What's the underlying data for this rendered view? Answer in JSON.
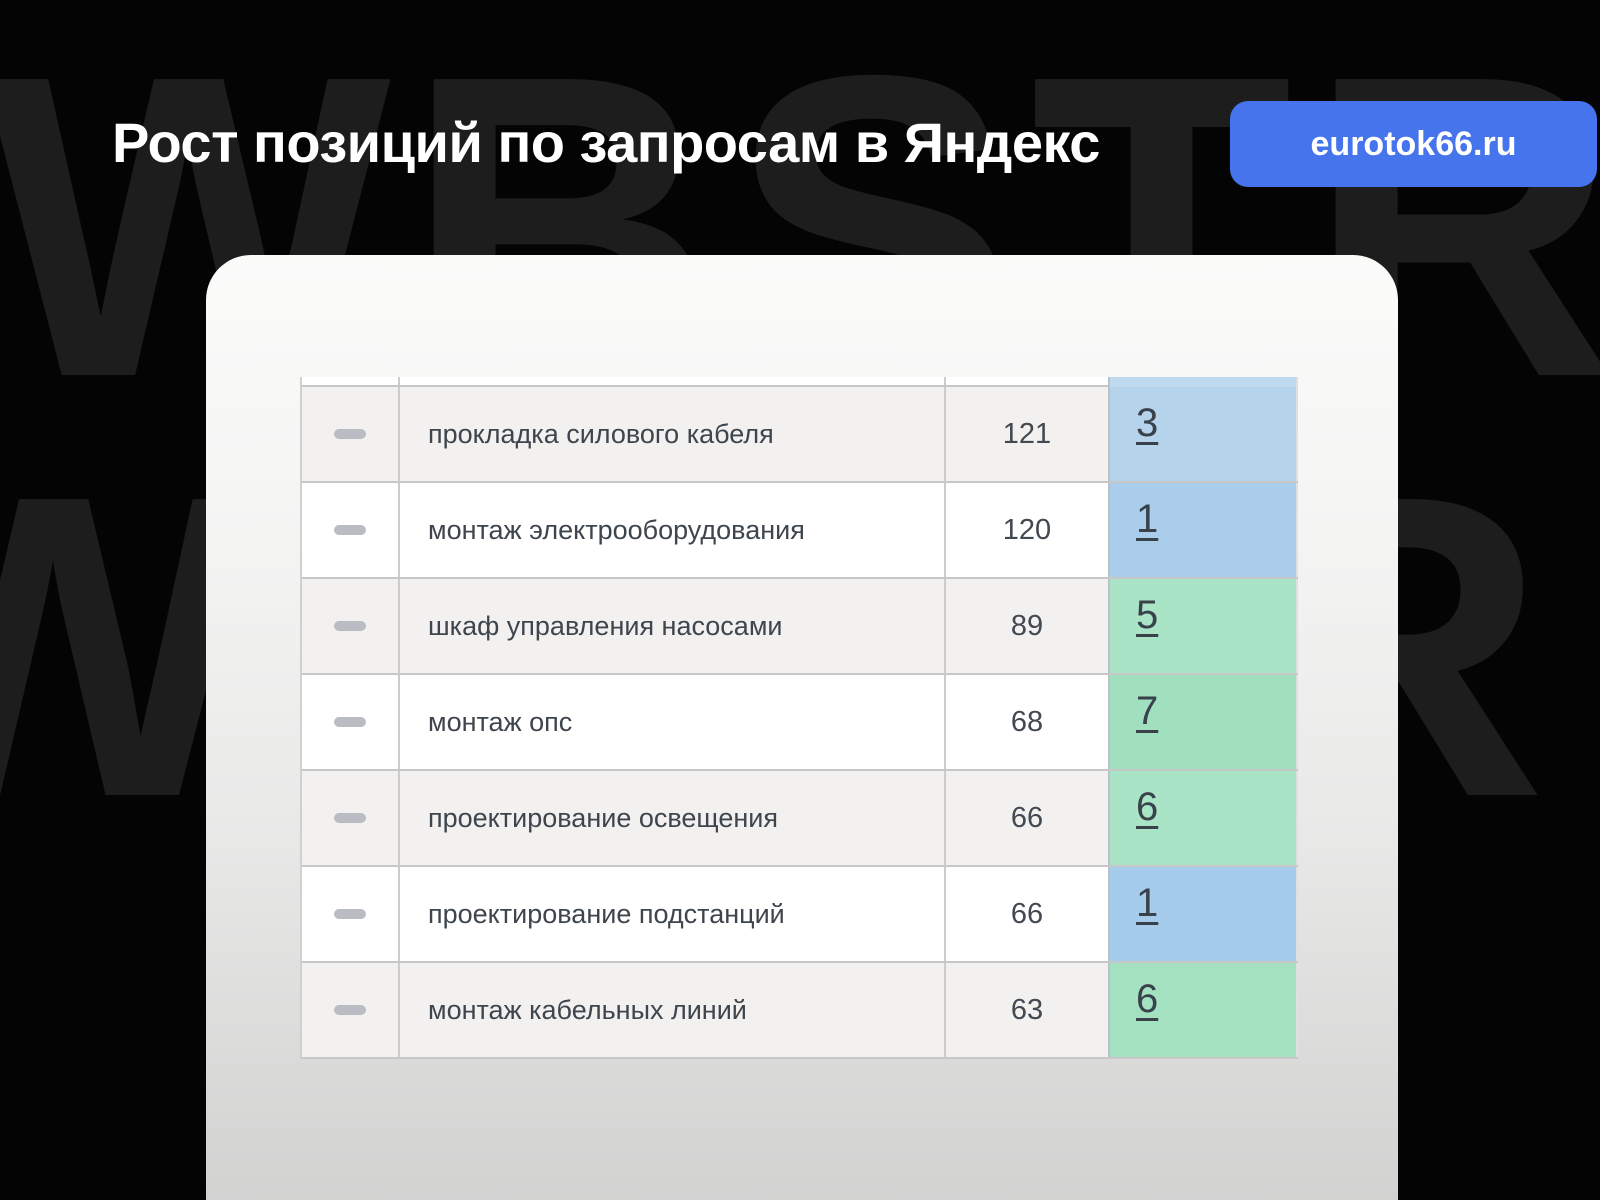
{
  "header": {
    "title": "Рост позиций по запросам в Яндекс",
    "site_badge": "eurotok66.ru"
  },
  "watermark": {
    "line1": "WBSTR",
    "line2": "WBSTR"
  },
  "colors": {
    "badge_bg": "#4674ec",
    "watermark_text": "#1d1d1d",
    "cut_row_highlight": "#bfd9ee",
    "blue_highlight": "#a9cdea",
    "green_highlight": "#a9e4c6"
  },
  "table": {
    "rows": [
      {
        "query": "прокладка силового кабеля",
        "count": "121",
        "position": "3",
        "highlight": "blue",
        "cell_color": "#b5d4ec"
      },
      {
        "query": "монтаж электрооборудования",
        "count": "120",
        "position": "1",
        "highlight": "blue",
        "cell_color": "#a9cdea"
      },
      {
        "query": "шкаф управления насосами",
        "count": "89",
        "position": "5",
        "highlight": "green",
        "cell_color": "#a9e4c6"
      },
      {
        "query": "монтаж опс",
        "count": "68",
        "position": "7",
        "highlight": "green",
        "cell_color": "#a1e0bf"
      },
      {
        "query": "проектирование освещения",
        "count": "66",
        "position": "6",
        "highlight": "green",
        "cell_color": "#a9e4c6"
      },
      {
        "query": "проектирование подстанций",
        "count": "66",
        "position": "1",
        "highlight": "blue",
        "cell_color": "#a6cceb"
      },
      {
        "query": "монтаж кабельных линий",
        "count": "63",
        "position": "6",
        "highlight": "green",
        "cell_color": "#a3e1c1"
      }
    ]
  }
}
